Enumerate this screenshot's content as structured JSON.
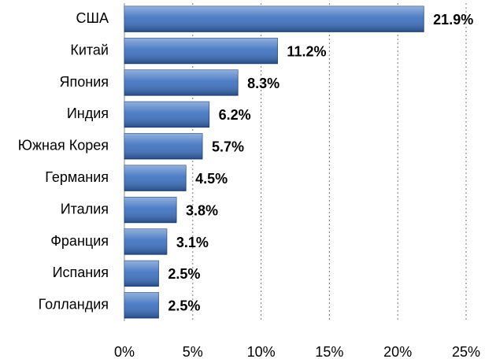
{
  "chart_data": {
    "type": "bar",
    "orientation": "horizontal",
    "categories": [
      "США",
      "Китай",
      "Япония",
      "Индия",
      "Южная Корея",
      "Германия",
      "Италия",
      "Франция",
      "Испания",
      "Голландия"
    ],
    "values": [
      21.9,
      11.2,
      8.3,
      6.2,
      5.7,
      4.5,
      3.8,
      3.1,
      2.5,
      2.5
    ],
    "value_labels": [
      "21.9%",
      "11.2%",
      "8.3%",
      "6.2%",
      "5.7%",
      "4.5%",
      "3.8%",
      "3.1%",
      "2.5%",
      "2.5%"
    ],
    "color": "#3a6fc0",
    "xlim": [
      0,
      25
    ],
    "xticks": [
      {
        "value": 0,
        "label": "0%"
      },
      {
        "value": 5,
        "label": "5%"
      },
      {
        "value": 10,
        "label": "10%"
      },
      {
        "value": 15,
        "label": "15%"
      },
      {
        "value": 20,
        "label": "20%"
      },
      {
        "value": 25,
        "label": "25%"
      }
    ],
    "grid": true
  }
}
